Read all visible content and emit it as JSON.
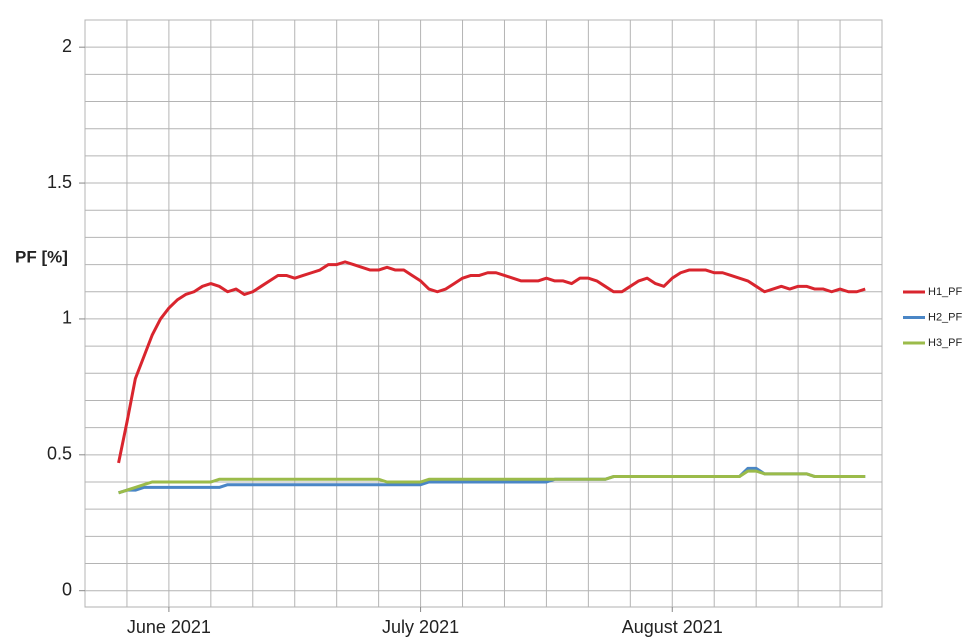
{
  "chart_data": {
    "type": "line",
    "y_label": "PF [%]",
    "x": [
      4,
      5,
      6,
      7,
      8,
      9,
      10,
      11,
      12,
      13,
      14,
      15,
      16,
      17,
      18,
      19,
      20,
      21,
      22,
      23,
      24,
      25,
      26,
      27,
      28,
      29,
      30,
      31,
      32,
      33,
      34,
      35,
      36,
      37,
      38,
      39,
      40,
      41,
      42,
      43,
      44,
      45,
      46,
      47,
      48,
      49,
      50,
      51,
      52,
      53,
      54,
      55,
      56,
      57,
      58,
      59,
      60,
      61,
      62,
      63,
      64,
      65,
      66,
      67,
      68,
      69,
      70,
      71,
      72,
      73,
      74,
      75,
      76,
      77,
      78,
      79,
      80,
      81,
      82,
      83,
      84,
      85,
      86,
      87,
      88,
      89,
      90,
      91,
      92,
      93
    ],
    "series": [
      {
        "name": "H1_PF",
        "color": "#d9252e",
        "values": [
          0.47,
          0.62,
          0.78,
          0.86,
          0.94,
          1.0,
          1.04,
          1.07,
          1.09,
          1.1,
          1.12,
          1.13,
          1.12,
          1.1,
          1.11,
          1.09,
          1.1,
          1.12,
          1.14,
          1.16,
          1.16,
          1.15,
          1.16,
          1.17,
          1.18,
          1.2,
          1.2,
          1.21,
          1.2,
          1.19,
          1.18,
          1.18,
          1.19,
          1.18,
          1.18,
          1.16,
          1.14,
          1.11,
          1.1,
          1.11,
          1.13,
          1.15,
          1.16,
          1.16,
          1.17,
          1.17,
          1.16,
          1.15,
          1.14,
          1.14,
          1.14,
          1.15,
          1.14,
          1.14,
          1.13,
          1.15,
          1.15,
          1.14,
          1.12,
          1.1,
          1.1,
          1.12,
          1.14,
          1.15,
          1.13,
          1.12,
          1.15,
          1.17,
          1.18,
          1.18,
          1.18,
          1.17,
          1.17,
          1.16,
          1.15,
          1.14,
          1.12,
          1.1,
          1.11,
          1.12,
          1.11,
          1.12,
          1.12,
          1.11,
          1.11,
          1.1,
          1.11,
          1.1,
          1.1,
          1.11
        ]
      },
      {
        "name": "H2_PF",
        "color": "#4a86c6",
        "values": [
          0.36,
          0.37,
          0.37,
          0.38,
          0.38,
          0.38,
          0.38,
          0.38,
          0.38,
          0.38,
          0.38,
          0.38,
          0.38,
          0.39,
          0.39,
          0.39,
          0.39,
          0.39,
          0.39,
          0.39,
          0.39,
          0.39,
          0.39,
          0.39,
          0.39,
          0.39,
          0.39,
          0.39,
          0.39,
          0.39,
          0.39,
          0.39,
          0.39,
          0.39,
          0.39,
          0.39,
          0.39,
          0.4,
          0.4,
          0.4,
          0.4,
          0.4,
          0.4,
          0.4,
          0.4,
          0.4,
          0.4,
          0.4,
          0.4,
          0.4,
          0.4,
          0.4,
          0.41,
          0.41,
          0.41,
          0.41,
          0.41,
          0.41,
          0.41,
          0.42,
          0.42,
          0.42,
          0.42,
          0.42,
          0.42,
          0.42,
          0.42,
          0.42,
          0.42,
          0.42,
          0.42,
          0.42,
          0.42,
          0.42,
          0.42,
          0.45,
          0.45,
          0.43,
          0.43,
          0.43,
          0.43,
          0.43,
          0.43,
          0.42,
          0.42,
          0.42,
          0.42,
          0.42,
          0.42,
          0.42
        ]
      },
      {
        "name": "H3_PF",
        "color": "#9bbb4a",
        "values": [
          0.36,
          0.37,
          0.38,
          0.39,
          0.4,
          0.4,
          0.4,
          0.4,
          0.4,
          0.4,
          0.4,
          0.4,
          0.41,
          0.41,
          0.41,
          0.41,
          0.41,
          0.41,
          0.41,
          0.41,
          0.41,
          0.41,
          0.41,
          0.41,
          0.41,
          0.41,
          0.41,
          0.41,
          0.41,
          0.41,
          0.41,
          0.41,
          0.4,
          0.4,
          0.4,
          0.4,
          0.4,
          0.41,
          0.41,
          0.41,
          0.41,
          0.41,
          0.41,
          0.41,
          0.41,
          0.41,
          0.41,
          0.41,
          0.41,
          0.41,
          0.41,
          0.41,
          0.41,
          0.41,
          0.41,
          0.41,
          0.41,
          0.41,
          0.41,
          0.42,
          0.42,
          0.42,
          0.42,
          0.42,
          0.42,
          0.42,
          0.42,
          0.42,
          0.42,
          0.42,
          0.42,
          0.42,
          0.42,
          0.42,
          0.42,
          0.44,
          0.44,
          0.43,
          0.43,
          0.43,
          0.43,
          0.43,
          0.43,
          0.42,
          0.42,
          0.42,
          0.42,
          0.42,
          0.42,
          0.42
        ]
      }
    ],
    "xlim": [
      0,
      95
    ],
    "xticks": [
      {
        "value": 10,
        "label": "June 2021"
      },
      {
        "value": 40,
        "label": "July 2021"
      },
      {
        "value": 70,
        "label": "August 2021"
      }
    ],
    "xgrid": [
      0,
      5,
      10,
      15,
      20,
      25,
      30,
      35,
      40,
      45,
      50,
      55,
      60,
      65,
      70,
      75,
      80,
      85,
      90,
      95
    ],
    "ylim": [
      -0.06,
      2.1
    ],
    "yticks": [
      0,
      0.5,
      1,
      1.5,
      2
    ],
    "ygrid": [
      0,
      0.1,
      0.2,
      0.3,
      0.4,
      0.5,
      0.6,
      0.7,
      0.8,
      0.9,
      1,
      1.1,
      1.2,
      1.3,
      1.4,
      1.5,
      1.6,
      1.7,
      1.8,
      1.9,
      2,
      2.1
    ],
    "grid": true,
    "legend": "right"
  }
}
